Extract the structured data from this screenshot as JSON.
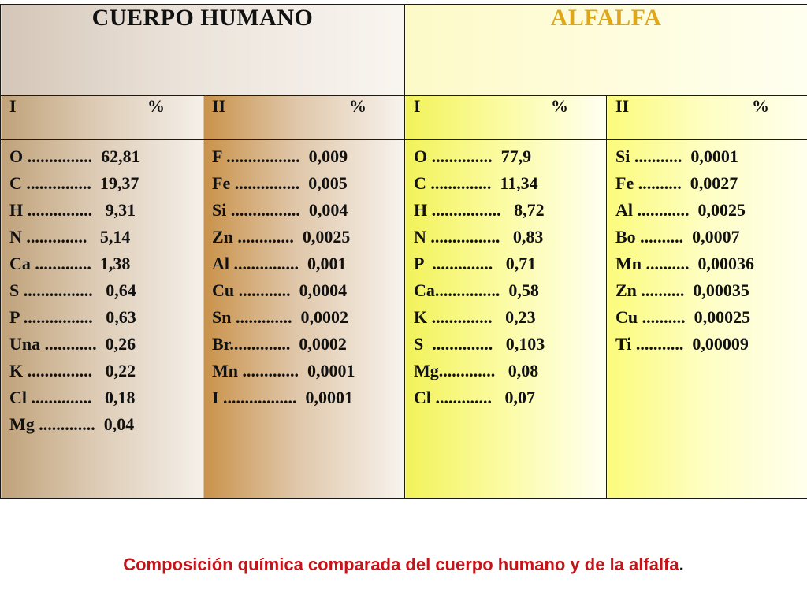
{
  "header": {
    "cuerpo_humano": "CUERPO HUMANO",
    "alfalfa": "ALFALFA"
  },
  "subheaders": [
    {
      "label": "I",
      "percent": "%"
    },
    {
      "label": "II",
      "percent": "%"
    },
    {
      "label": "I",
      "percent": "%"
    },
    {
      "label": "II",
      "percent": "%"
    }
  ],
  "columns": {
    "human_I": [
      "O ...............  62,81",
      "C ...............  19,37",
      "H ...............   9,31",
      "N ..............   5,14",
      "Ca .............  1,38",
      "S ................   0,64",
      "P ................   0,63",
      "Una ............  0,26",
      "K ...............   0,22",
      "Cl ..............   0,18",
      "Mg .............  0,04"
    ],
    "human_II": [
      "F .................  0,009",
      "Fe ...............  0,005",
      "Si ................  0,004",
      "Zn .............  0,0025",
      "Al ...............  0,001",
      "Cu ............  0,0004",
      "Sn .............  0,0002",
      "Br..............  0,0002",
      "Mn .............  0,0001",
      "I .................  0,0001"
    ],
    "alfalfa_I": [
      "O ..............  77,9",
      "C ..............  11,34",
      "H ................   8,72",
      "N ................   0,83",
      "P  ..............   0,71",
      "Ca...............  0,58",
      "K ..............   0,23",
      "S  ..............   0,103",
      "Mg.............   0,08",
      "Cl .............   0,07"
    ],
    "alfalfa_II": [
      "Si ...........  0,0001",
      "Fe ..........  0,0027",
      "Al ............  0,0025",
      "Bo ..........  0,0007",
      "Mn ..........  0,00036",
      "Zn ..........  0,00035",
      "Cu ..........  0,00025",
      "Ti ...........  0,00009"
    ]
  },
  "caption": {
    "text": "Composición química comparada del cuerpo humano y de la alfalfa",
    "end_punct": "."
  }
}
